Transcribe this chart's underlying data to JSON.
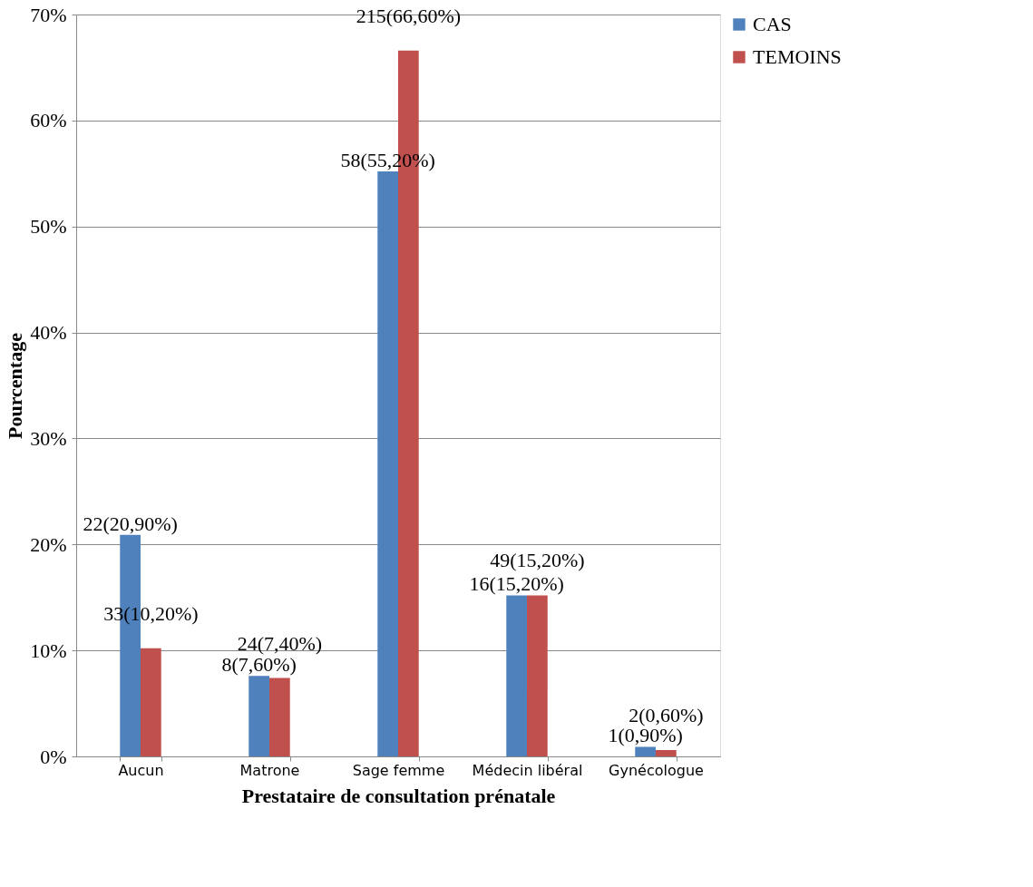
{
  "chart_data": {
    "type": "bar",
    "xlabel": "Prestataire de consultation prénatale",
    "ylabel": "Pourcentage",
    "categories": [
      "Aucun",
      "Matrone",
      "Sage femme",
      "Médecin libéral",
      "Gynécologue"
    ],
    "series": [
      {
        "name": "CAS",
        "color": "#4f81bd",
        "values": [
          20.9,
          7.6,
          55.2,
          15.2,
          0.9
        ],
        "value_labels": [
          "22(20,90%)",
          "8(7,60%)",
          "58(55,20%)",
          "16(15,20%)",
          "1(0,90%)"
        ]
      },
      {
        "name": "TEMOINS",
        "color": "#c0504d",
        "values": [
          10.2,
          7.4,
          66.6,
          15.2,
          0.6
        ],
        "value_labels": [
          "33(10,20%)",
          "24(7,40%)",
          "215(66,60%)",
          "49(15,20%)",
          "2(0,60%)"
        ]
      }
    ],
    "ylim": [
      0,
      70
    ],
    "yticks": [
      {
        "value": 0,
        "label": "0%"
      },
      {
        "value": 10,
        "label": "10%"
      },
      {
        "value": 20,
        "label": "20%"
      },
      {
        "value": 30,
        "label": "30%"
      },
      {
        "value": 40,
        "label": "40%"
      },
      {
        "value": 50,
        "label": "50%"
      },
      {
        "value": 60,
        "label": "60%"
      },
      {
        "value": 70,
        "label": "70%"
      }
    ],
    "grid": "y",
    "legend": "right"
  }
}
